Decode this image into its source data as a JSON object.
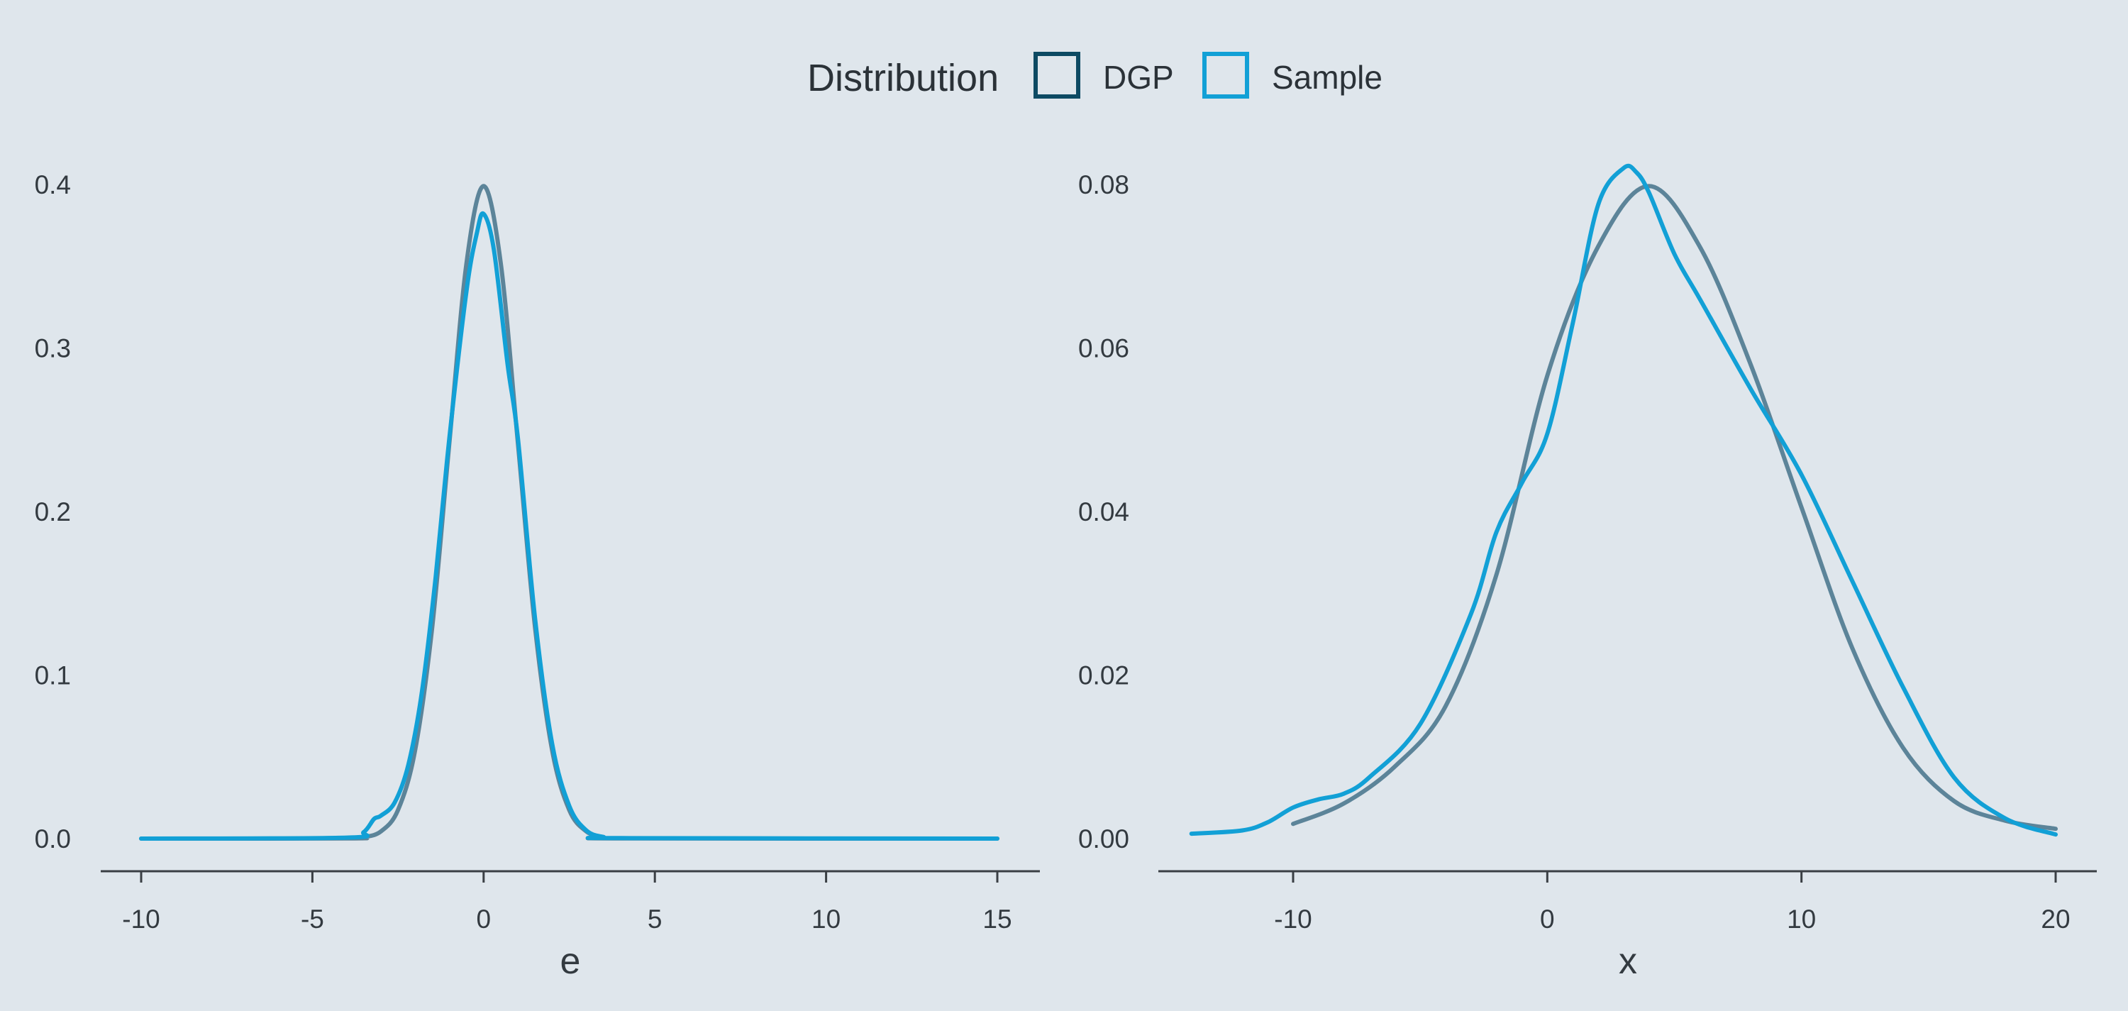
{
  "legend": {
    "title": "Distribution",
    "placement": "top-center",
    "entries": [
      {
        "name": "DGP",
        "color": "#0d4a63"
      },
      {
        "name": "Sample",
        "color": "#12a0d6"
      }
    ]
  },
  "colors": {
    "background": "#dfe6ec",
    "dgp_curve": "#5c8499",
    "sample_curve": "#12a0d6"
  },
  "chart_data": [
    {
      "type": "line",
      "xlabel": "e",
      "ylabel": "",
      "xlim": [
        -11.2,
        16.2
      ],
      "ylim": [
        -0.019,
        0.41
      ],
      "xticks": [
        -10,
        -5,
        0,
        5,
        10,
        15
      ],
      "xtick_labels": [
        "-10",
        "-5",
        "0",
        "5",
        "10",
        "15"
      ],
      "yticks": [
        0.0,
        0.1,
        0.2,
        0.3,
        0.4
      ],
      "ytick_labels": [
        "0.0",
        "0.1",
        "0.2",
        "0.3",
        "0.4"
      ],
      "grid": false,
      "series": [
        {
          "name": "DGP",
          "x": [
            -10,
            -4,
            -3.5,
            -3,
            -2.5,
            -2,
            -1.5,
            -1,
            -0.5,
            0,
            0.5,
            1,
            1.5,
            2,
            2.5,
            3,
            3.5,
            4,
            15
          ],
          "y": [
            0.0,
            0.0001,
            0.0009,
            0.0044,
            0.0175,
            0.054,
            0.1295,
            0.242,
            0.352,
            0.399,
            0.352,
            0.242,
            0.1295,
            0.054,
            0.0175,
            0.0044,
            0.0009,
            0.0001,
            0.0
          ]
        },
        {
          "name": "Sample",
          "x": [
            -10,
            -4,
            -3.5,
            -3.2,
            -3,
            -2.6,
            -2.2,
            -1.8,
            -1.4,
            -1,
            -0.5,
            -0.2,
            0,
            0.3,
            0.7,
            1,
            1.5,
            2,
            2.5,
            3,
            3.5,
            4,
            15
          ],
          "y": [
            0.0,
            0.0006,
            0.004,
            0.012,
            0.014,
            0.022,
            0.045,
            0.09,
            0.16,
            0.245,
            0.335,
            0.37,
            0.382,
            0.36,
            0.29,
            0.245,
            0.135,
            0.058,
            0.02,
            0.005,
            0.001,
            0.0003,
            0.0
          ]
        }
      ]
    },
    {
      "type": "line",
      "xlabel": "x",
      "ylabel": "",
      "xlim": [
        -15.6,
        21.6
      ],
      "ylim": [
        -0.004,
        0.083
      ],
      "xticks": [
        -10,
        0,
        10,
        20
      ],
      "xtick_labels": [
        "-10",
        "0",
        "10",
        "20"
      ],
      "yticks": [
        0.0,
        0.02,
        0.04,
        0.06,
        0.08
      ],
      "ytick_labels": [
        "0.00",
        "0.02",
        "0.04",
        "0.06",
        "0.08"
      ],
      "grid": false,
      "series": [
        {
          "name": "DGP",
          "x": [
            -10,
            -8,
            -6,
            -4,
            -2,
            0,
            2,
            4,
            6,
            8,
            10,
            12,
            14,
            16,
            18,
            20
          ],
          "y": [
            0.0018,
            0.0043,
            0.0088,
            0.0162,
            0.0323,
            0.0566,
            0.0724,
            0.0798,
            0.0724,
            0.058,
            0.0405,
            0.0233,
            0.0111,
            0.0046,
            0.0022,
            0.0012
          ]
        },
        {
          "name": "Sample",
          "x": [
            -14,
            -12,
            -11,
            -10,
            -9,
            -8,
            -7,
            -5,
            -3,
            -2,
            -1,
            0,
            1,
            2,
            3,
            3.5,
            4,
            5,
            6,
            8,
            10,
            12,
            14,
            16,
            18,
            20
          ],
          "y": [
            0.0006,
            0.001,
            0.002,
            0.0038,
            0.0048,
            0.0055,
            0.0075,
            0.014,
            0.0275,
            0.0375,
            0.0435,
            0.0495,
            0.063,
            0.0775,
            0.082,
            0.0815,
            0.079,
            0.0715,
            0.066,
            0.055,
            0.0445,
            0.0315,
            0.0185,
            0.0075,
            0.0025,
            0.0005
          ]
        }
      ]
    }
  ]
}
